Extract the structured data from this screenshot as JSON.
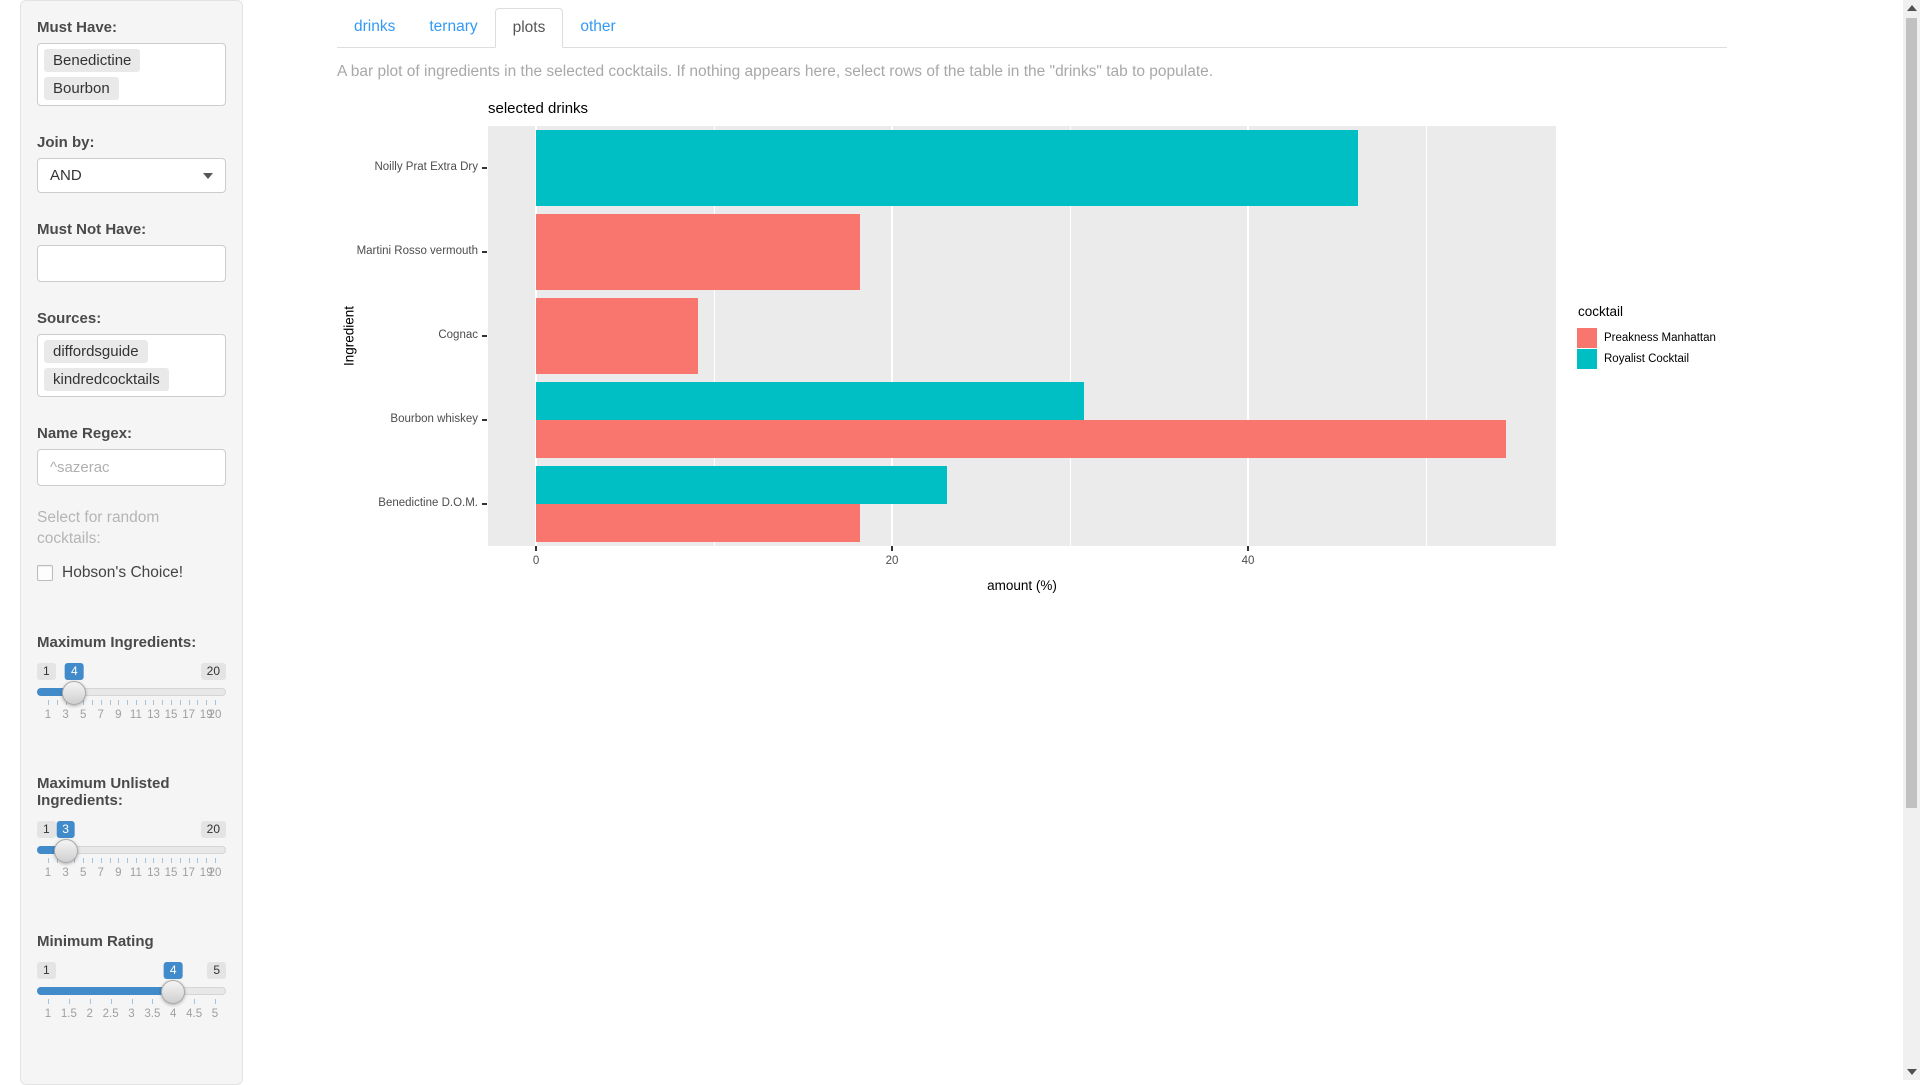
{
  "theme": {
    "accent_blue": "#428bca",
    "link_blue": "#3399f3",
    "panel_gray": "#f5f5f5"
  },
  "sidebar": {
    "must_have": {
      "label": "Must Have:",
      "tags": [
        "Benedictine",
        "Bourbon"
      ]
    },
    "join_by": {
      "label": "Join by:",
      "value": "AND"
    },
    "must_not_have": {
      "label": "Must Not Have:",
      "value": ""
    },
    "sources": {
      "label": "Sources:",
      "tags": [
        "diffordsguide",
        "kindredcocktails"
      ]
    },
    "name_regex": {
      "label": "Name Regex:",
      "value": "^sazerac"
    },
    "random": {
      "label": "Select for random cocktails:",
      "checkbox_label": "Hobson's Choice!",
      "checked": false
    },
    "sliders": [
      {
        "label": "Maximum Ingredients:",
        "min": 1,
        "max": 20,
        "step": 1,
        "value": 4,
        "tick_labels": [
          "1",
          "3",
          "5",
          "7",
          "9",
          "11",
          "13",
          "15",
          "17",
          "19",
          "20"
        ]
      },
      {
        "label": "Maximum Unlisted Ingredients:",
        "min": 1,
        "max": 20,
        "step": 1,
        "value": 3,
        "tick_labels": [
          "1",
          "3",
          "5",
          "7",
          "9",
          "11",
          "13",
          "15",
          "17",
          "19",
          "20"
        ]
      },
      {
        "label": "Minimum Rating",
        "min": 1,
        "max": 5,
        "step": 0.5,
        "value": 4,
        "tick_labels": [
          "1",
          "1.5",
          "2",
          "2.5",
          "3",
          "3.5",
          "4",
          "4.5",
          "5"
        ]
      }
    ]
  },
  "tabs": [
    {
      "label": "drinks",
      "active": false
    },
    {
      "label": "ternary",
      "active": false
    },
    {
      "label": "plots",
      "active": true
    },
    {
      "label": "other",
      "active": false
    }
  ],
  "description": "A bar plot of ingredients in the selected cocktails. If nothing appears here, select rows of the table in the \"drinks\" tab to populate.",
  "chart_data": {
    "type": "bar",
    "orientation": "horizontal",
    "title": "selected drinks",
    "xlabel": "amount (%)",
    "ylabel": "Ingredient",
    "categories": [
      "Noilly Prat Extra Dry",
      "Martini Rosso vermouth",
      "Cognac",
      "Bourbon whiskey",
      "Benedictine D.O.M."
    ],
    "series": [
      {
        "name": "Preakness Manhattan",
        "color": "#F8766D",
        "values": [
          null,
          18.2,
          9.1,
          54.5,
          18.2
        ]
      },
      {
        "name": "Royalist Cocktail",
        "color": "#00BFC4",
        "values": [
          46.2,
          null,
          null,
          30.8,
          23.1
        ]
      }
    ],
    "xlim": [
      -2.7,
      57.3
    ],
    "xticks": [
      0,
      20,
      40
    ],
    "minor_ticks": [
      10,
      30,
      50
    ],
    "legend_title": "cocktail",
    "legend_position": "right",
    "panel_bg": "#EBEBEB",
    "grid": "white on gray panel"
  }
}
